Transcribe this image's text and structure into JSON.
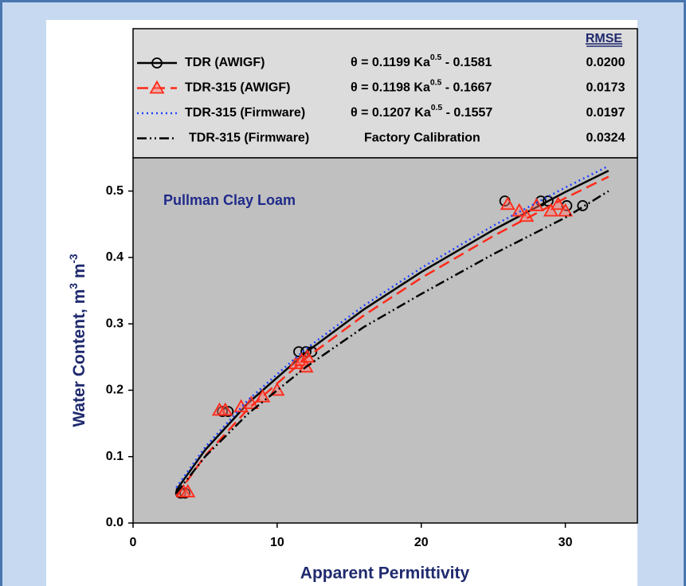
{
  "chart_data": {
    "type": "line",
    "xlabel": "Apparent Permittivity",
    "ylabel": [
      {
        "text": "Water Content, m"
      },
      {
        "sup": "3"
      },
      {
        "text": " m"
      },
      {
        "sup": "-3"
      }
    ],
    "annotation": "Pullman Clay Loam",
    "rmse_header": "RMSE",
    "xlim": [
      0,
      35
    ],
    "ylim": [
      0,
      0.55
    ],
    "xticks": [
      0,
      10,
      20,
      30
    ],
    "yticks": [
      {
        "value": 0,
        "label": "0.0"
      },
      0.1,
      0.2,
      0.3,
      0.4,
      0.5
    ],
    "series": [
      {
        "name": "TDR (AWIGF)",
        "color": "#000000",
        "dash": "none",
        "marker": "circle",
        "equation": [
          {
            "text": "θ = 0.1199 Ka"
          },
          {
            "sup": "0.5"
          },
          {
            "text": " - 0.1581"
          }
        ],
        "rmse": "0.0200",
        "x": [
          3,
          5,
          8,
          12,
          16,
          20,
          25,
          30,
          33
        ],
        "values": [
          0.0496,
          0.11,
          0.181,
          0.257,
          0.3215,
          0.378,
          0.4414,
          0.4986,
          0.5307
        ],
        "points_x": [
          3.3,
          3.6,
          6.2,
          6.6,
          11.5,
          12,
          12.4,
          25.8,
          28.3,
          28.8,
          30.1,
          31.2
        ],
        "points_y": [
          0.045,
          0.045,
          0.168,
          0.168,
          0.258,
          0.258,
          0.258,
          0.485,
          0.485,
          0.485,
          0.478,
          0.478
        ]
      },
      {
        "name": "TDR-315 (AWIGF)",
        "color": "#ff2a1a",
        "dash": "14 7",
        "marker": "triangle",
        "equation": [
          {
            "text": "θ = 0.1198 Ka"
          },
          {
            "sup": "0.5"
          },
          {
            "text": " - 0.1667"
          }
        ],
        "rmse": "0.0173",
        "x": [
          3,
          5,
          8,
          12,
          16,
          20,
          25,
          30,
          33
        ],
        "values": [
          0.0408,
          0.1012,
          0.1721,
          0.2483,
          0.3125,
          0.3691,
          0.4323,
          0.4895,
          0.5216
        ],
        "points_x": [
          3.5,
          3.8,
          6,
          6.4,
          7.5,
          8.2,
          9,
          10,
          11.3,
          11.7,
          12,
          12.1,
          26,
          26.8,
          27.3,
          28,
          29,
          29.5,
          30
        ],
        "points_y": [
          0.047,
          0.047,
          0.17,
          0.17,
          0.175,
          0.18,
          0.19,
          0.2,
          0.24,
          0.245,
          0.235,
          0.25,
          0.48,
          0.47,
          0.462,
          0.478,
          0.47,
          0.48,
          0.47
        ]
      },
      {
        "name": "TDR-315 (Firmware)",
        "color": "#2040ff",
        "dash": "2 4",
        "marker": "none",
        "equation": [
          {
            "text": "θ = 0.1207 Ka"
          },
          {
            "sup": "0.5"
          },
          {
            "text": " - 0.1557"
          }
        ],
        "rmse": "0.0197",
        "x": [
          3,
          5,
          8,
          12,
          16,
          20,
          25,
          30,
          33
        ],
        "values": [
          0.0534,
          0.1142,
          0.1857,
          0.2624,
          0.3271,
          0.3841,
          0.4478,
          0.5054,
          0.5377
        ]
      },
      {
        "name": "TDR-315 (Firmware)",
        "note": "Factory Calibration",
        "color": "#000000",
        "dash": "12 4 2 4 2 4",
        "marker": "none",
        "rmse": "0.0324",
        "x": [
          3,
          5,
          8,
          12,
          16,
          20,
          25,
          30,
          33
        ],
        "values": [
          0.045,
          0.1,
          0.165,
          0.235,
          0.295,
          0.345,
          0.405,
          0.46,
          0.5
        ]
      }
    ]
  }
}
